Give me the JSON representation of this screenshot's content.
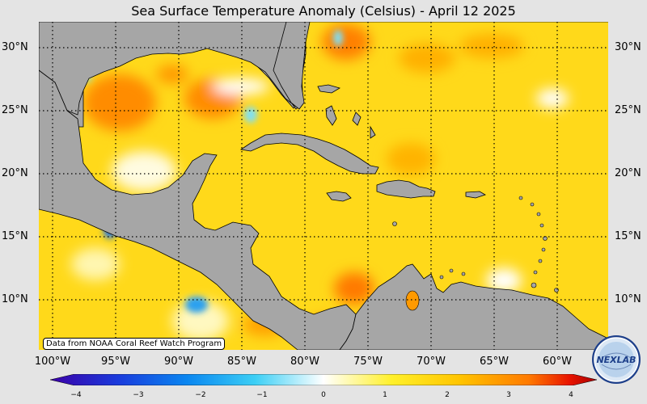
{
  "title": "Sea Surface Temperature Anomaly (Celsius) - April 12 2025",
  "credit": "Data from NOAA Coral Reef Watch Program",
  "logo_text": "NEXLAB",
  "latitude_labels": [
    "30°N",
    "25°N",
    "20°N",
    "15°N",
    "10°N"
  ],
  "longitude_labels": [
    "100°W",
    "95°W",
    "90°W",
    "85°W",
    "80°W",
    "75°W",
    "70°W",
    "65°W",
    "60°W"
  ],
  "colorbar": {
    "min": -4,
    "max": 4,
    "ticks": [
      "−4",
      "−3",
      "−2",
      "−1",
      "0",
      "1",
      "2",
      "3",
      "4"
    ],
    "colors": [
      "#3b00a8",
      "#1a3bdc",
      "#0a86f0",
      "#3ccff5",
      "#ffffff",
      "#fff02a",
      "#ffc400",
      "#ff7a00",
      "#e81400",
      "#a80000"
    ]
  },
  "colors": {
    "land": "#a6a6a6",
    "ocean_base": "#ffd91a",
    "warm": "#ff8c00",
    "hot": "#e82000",
    "cool": "#ffffff",
    "cold": "#3cb4f0"
  }
}
